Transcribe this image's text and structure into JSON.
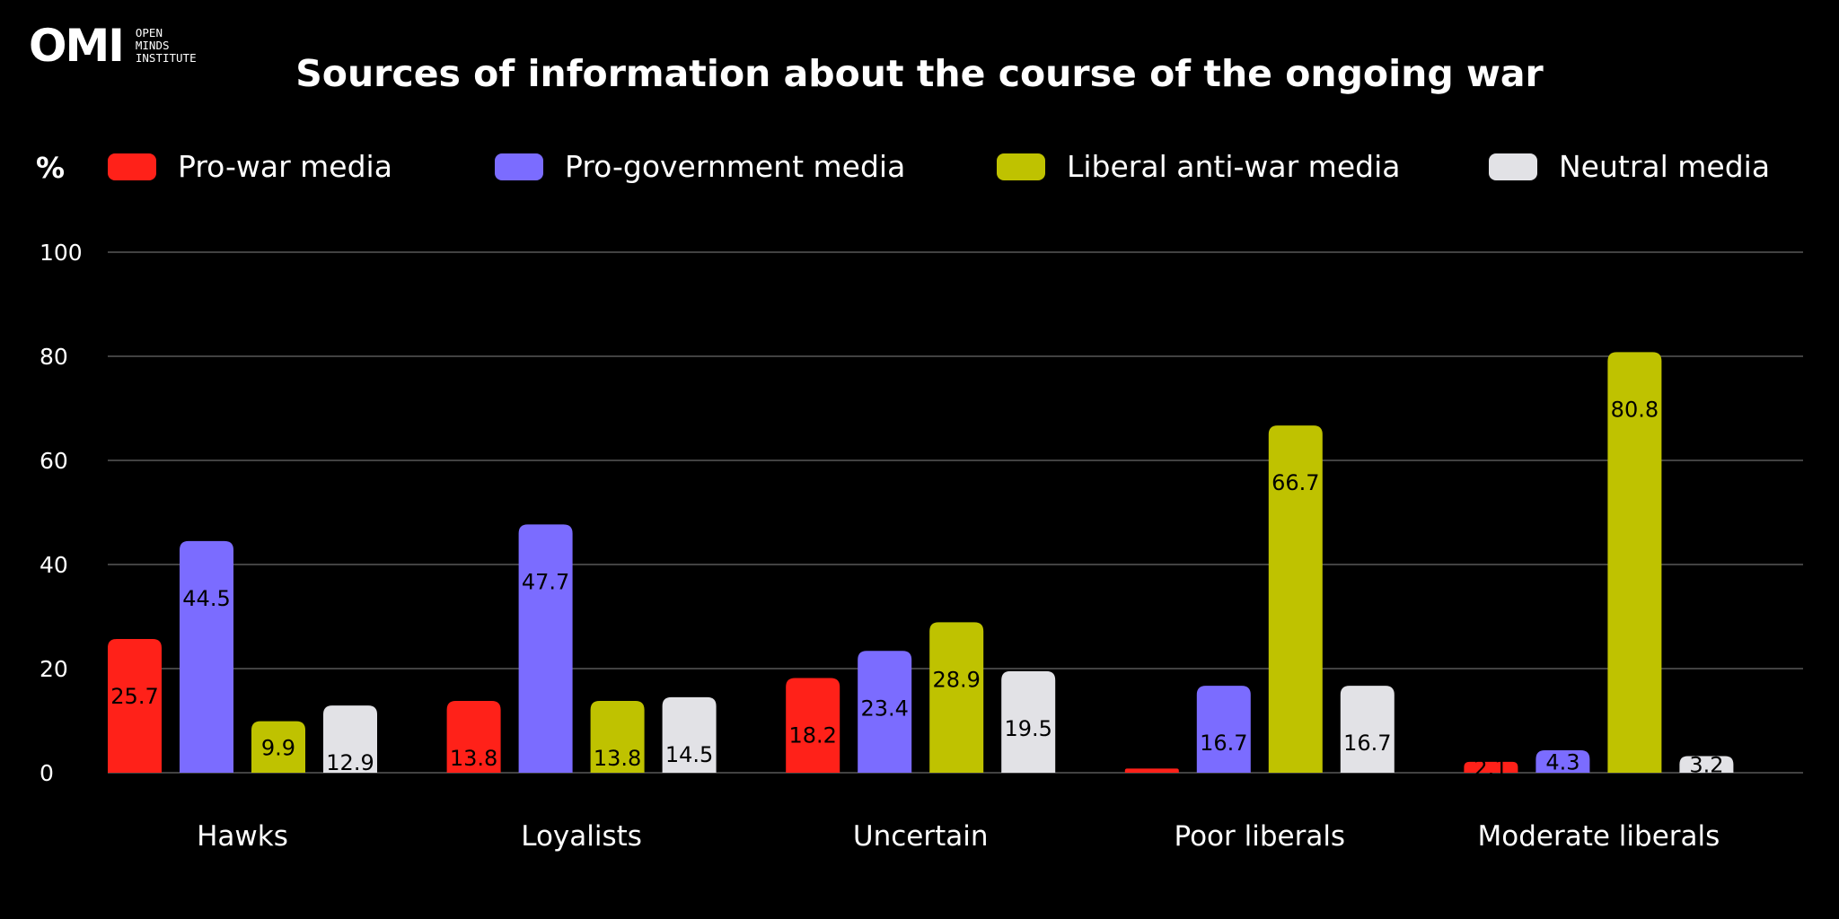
{
  "logo": {
    "mark": "OMI",
    "lines": [
      "OPEN",
      "MINDS",
      "INSTITUTE"
    ]
  },
  "chart_data": {
    "type": "bar",
    "title": "Sources of information about the course of the ongoing war",
    "ylabel": "%",
    "xlabel": "",
    "ylim": [
      0,
      100
    ],
    "yticks": [
      0,
      20,
      40,
      60,
      80,
      100
    ],
    "grid": true,
    "legend_position": "top",
    "categories": [
      "Hawks",
      "Loyalists",
      "Uncertain",
      "Poor liberals",
      "Moderate liberals"
    ],
    "series": [
      {
        "name": "Pro-war media",
        "color": "#ff2119",
        "label_color": "#000000",
        "values": [
          25.7,
          13.8,
          18.2,
          0.8,
          2.1
        ],
        "labels": [
          "25.7",
          "13.8",
          "18.2",
          "",
          "2.1"
        ]
      },
      {
        "name": "Pro-government media",
        "color": "#7b6cff",
        "label_color": "#000000",
        "values": [
          44.5,
          47.7,
          23.4,
          16.7,
          4.3
        ],
        "labels": [
          "44.5",
          "47.7",
          "23.4",
          "16.7",
          "4.3"
        ]
      },
      {
        "name": "Liberal anti-war media",
        "color": "#bfc200",
        "label_color": "#000000",
        "values": [
          9.9,
          13.8,
          28.9,
          66.7,
          80.8
        ],
        "labels": [
          "9.9",
          "13.8",
          "28.9",
          "66.7",
          "80.8"
        ]
      },
      {
        "name": "Neutral media",
        "color": "#e2e2e6",
        "label_color": "#000000",
        "values": [
          12.9,
          14.5,
          19.5,
          16.7,
          3.2
        ],
        "labels": [
          "12.9",
          "14.5",
          "19.5",
          "16.7",
          "3.2"
        ]
      }
    ]
  }
}
